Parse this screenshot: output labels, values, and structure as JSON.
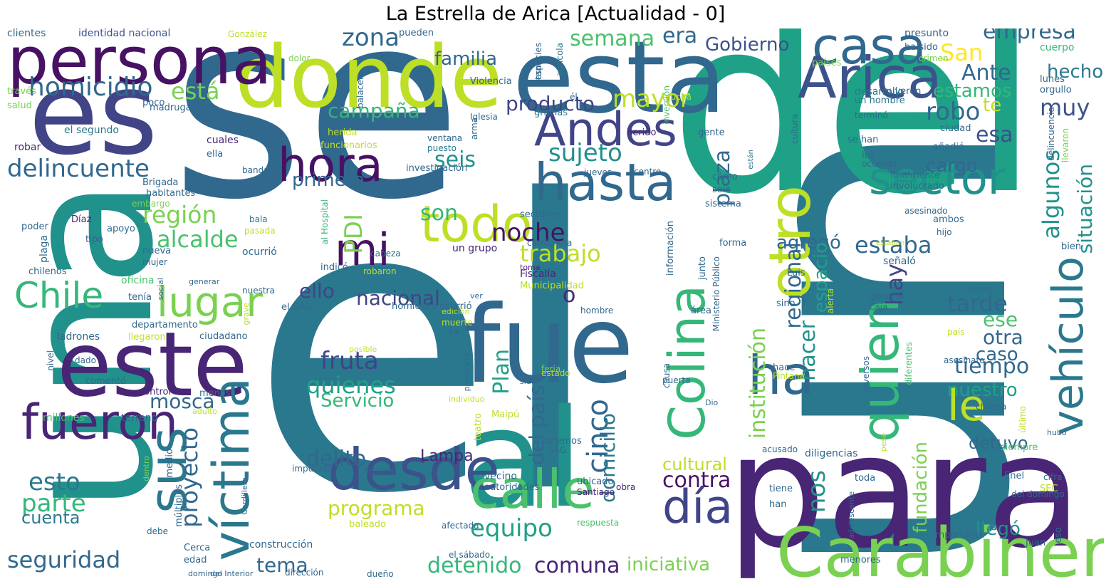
{
  "title": "La Estrella de Arica [Actualidad - 0]",
  "palette": {
    "dark_purple": "#482575",
    "deep_purple": "#471164",
    "indigo": "#414487",
    "blue": "#3b528b",
    "steel": "#31688e",
    "teal_blue": "#2a788e",
    "teal": "#21918c",
    "sea_green": "#1fa187",
    "green": "#35b779",
    "light_green": "#4ac16d",
    "lime": "#7ad151",
    "yellow_green": "#bddf26",
    "yellow": "#fde725",
    "chartreuse": "#addc30"
  },
  "words": [
    {
      "text": "el",
      "color": "#2a788e"
    },
    {
      "text": "se",
      "color": "#31688e"
    },
    {
      "text": "un",
      "color": "#2a788e"
    },
    {
      "text": "del",
      "color": "#1fa187"
    },
    {
      "text": "una",
      "color": "#21918c"
    },
    {
      "text": "es",
      "color": "#414487"
    },
    {
      "text": "para",
      "color": "#482575"
    },
    {
      "text": "donde",
      "color": "#bddf26"
    },
    {
      "text": "esta",
      "color": "#31688e"
    },
    {
      "text": "persona",
      "color": "#471164"
    },
    {
      "text": "al",
      "color": "#21918c"
    },
    {
      "text": "fue",
      "color": "#31688e"
    },
    {
      "text": "este",
      "color": "#482575"
    },
    {
      "text": "Carabinero",
      "color": "#7ad151"
    },
    {
      "text": "casa",
      "color": "#31688e"
    },
    {
      "text": "Arica",
      "color": "#3b528b"
    },
    {
      "text": "Andes",
      "color": "#414487"
    },
    {
      "text": "hasta",
      "color": "#31688e"
    },
    {
      "text": "hora",
      "color": "#471164"
    },
    {
      "text": "todo",
      "color": "#bddf26"
    },
    {
      "text": "mi",
      "color": "#471164"
    },
    {
      "text": "desde",
      "color": "#3b528b"
    },
    {
      "text": "calle",
      "color": "#4ac16d"
    },
    {
      "text": "día",
      "color": "#414487"
    },
    {
      "text": "víctima",
      "color": "#2a788e"
    },
    {
      "text": "fueron",
      "color": "#482575"
    },
    {
      "text": "sus",
      "color": "#2a788e"
    },
    {
      "text": "Chile",
      "color": "#35b779"
    },
    {
      "text": "lugar",
      "color": "#7ad151"
    },
    {
      "text": "Colina",
      "color": "#35b779"
    },
    {
      "text": "otro",
      "color": "#bddf26"
    },
    {
      "text": "ha",
      "color": "#31688e"
    },
    {
      "text": "quien",
      "color": "#35b779"
    },
    {
      "text": "le",
      "color": "#bddf26"
    },
    {
      "text": "sector",
      "color": "#21918c"
    },
    {
      "text": "vehículo",
      "color": "#2a788e"
    },
    {
      "text": "homicidio",
      "color": "#31688e"
    },
    {
      "text": "delincuente",
      "color": "#31688e"
    },
    {
      "text": "región",
      "color": "#7ad151"
    },
    {
      "text": "alcalde",
      "color": "#4ac16d"
    },
    {
      "text": "está",
      "color": "#7ad151"
    },
    {
      "text": "zona",
      "color": "#31688e"
    },
    {
      "text": "familia",
      "color": "#31688e"
    },
    {
      "text": "semana",
      "color": "#4ac16d"
    },
    {
      "text": "era",
      "color": "#31688e"
    },
    {
      "text": "Gobierno",
      "color": "#3b528b"
    },
    {
      "text": "San",
      "color": "#fde725"
    },
    {
      "text": "Ante",
      "color": "#31688e"
    },
    {
      "text": "empresa",
      "color": "#31688e"
    },
    {
      "text": "hecho",
      "color": "#2a788e"
    },
    {
      "text": "estamos",
      "color": "#35b779"
    },
    {
      "text": "muy",
      "color": "#3b528b"
    },
    {
      "text": "te",
      "color": "#bddf26"
    },
    {
      "text": "robo",
      "color": "#31688e"
    },
    {
      "text": "esa",
      "color": "#3b528b"
    },
    {
      "text": "mayor",
      "color": "#bddf26"
    },
    {
      "text": "producto",
      "color": "#414487"
    },
    {
      "text": "campaña",
      "color": "#35b779"
    },
    {
      "text": "sujeto",
      "color": "#21918c"
    },
    {
      "text": "seis",
      "color": "#21918c"
    },
    {
      "text": "primera",
      "color": "#31688e"
    },
    {
      "text": "son",
      "color": "#35b779"
    },
    {
      "text": "PDI",
      "color": "#7ad151"
    },
    {
      "text": "trabajo",
      "color": "#bddf26"
    },
    {
      "text": "estaba",
      "color": "#31688e"
    },
    {
      "text": "agregó",
      "color": "#31688e"
    },
    {
      "text": "regional",
      "color": "#31688e"
    },
    {
      "text": "plaza",
      "color": "#31688e"
    },
    {
      "text": "institución",
      "color": "#7ad151"
    },
    {
      "text": "hacer",
      "color": "#21918c"
    },
    {
      "text": "espacio",
      "color": "#1fa187"
    },
    {
      "text": "hay",
      "color": "#414487"
    },
    {
      "text": "algunos",
      "color": "#21918c"
    },
    {
      "text": "situación",
      "color": "#21918c"
    },
    {
      "text": "cargo",
      "color": "#31688e"
    },
    {
      "text": "nacional",
      "color": "#414487"
    },
    {
      "text": "ello",
      "color": "#414487"
    },
    {
      "text": "noche",
      "color": "#471164"
    },
    {
      "text": "o",
      "color": "#482575"
    },
    {
      "text": "fruta",
      "color": "#414487"
    },
    {
      "text": "quienes",
      "color": "#1fa187"
    },
    {
      "text": "Servicio",
      "color": "#35b779"
    },
    {
      "text": "mosca",
      "color": "#31688e"
    },
    {
      "text": "Plan",
      "color": "#1fa187"
    },
    {
      "text": "país",
      "color": "#31688e"
    },
    {
      "text": "cinco",
      "color": "#31688e"
    },
    {
      "text": "domicilio",
      "color": "#2a788e"
    },
    {
      "text": "tarde",
      "color": "#31688e"
    },
    {
      "text": "ese",
      "color": "#4ac16d"
    },
    {
      "text": "otra",
      "color": "#31688e"
    },
    {
      "text": "caso",
      "color": "#31688e"
    },
    {
      "text": "tiempo",
      "color": "#31688e"
    },
    {
      "text": "nuestro",
      "color": "#1fa187"
    },
    {
      "text": "delito",
      "color": "#31688e"
    },
    {
      "text": "Lampa",
      "color": "#482575"
    },
    {
      "text": "esto",
      "color": "#2a788e"
    },
    {
      "text": "parte",
      "color": "#35b779"
    },
    {
      "text": "cuenta",
      "color": "#2a788e"
    },
    {
      "text": "seguridad",
      "color": "#31688e"
    },
    {
      "text": "proyecto",
      "color": "#31688e"
    },
    {
      "text": "del",
      "color": "#31688e"
    },
    {
      "text": "programa",
      "color": "#bddf26"
    },
    {
      "text": "equipo",
      "color": "#1fa187"
    },
    {
      "text": "detenido",
      "color": "#35b779"
    },
    {
      "text": "comuna",
      "color": "#482575"
    },
    {
      "text": "iniciativa",
      "color": "#7ad151"
    },
    {
      "text": "tema",
      "color": "#31688e"
    },
    {
      "text": "contra",
      "color": "#471164"
    },
    {
      "text": "cultural",
      "color": "#bddf26"
    },
    {
      "text": "nos",
      "color": "#21918c"
    },
    {
      "text": "fundación",
      "color": "#7ad151"
    },
    {
      "text": "detuvo",
      "color": "#31688e"
    },
    {
      "text": "llegó",
      "color": "#21918c"
    },
    {
      "text": "identidad nacional",
      "color": "#3b528b"
    },
    {
      "text": "clientes",
      "color": "#31688e"
    },
    {
      "text": "González",
      "color": "#bddf26"
    },
    {
      "text": "dolor",
      "color": "#7ad151"
    },
    {
      "text": "pueden",
      "color": "#31688e"
    },
    {
      "text": "presunto",
      "color": "#31688e"
    },
    {
      "text": "ha sido",
      "color": "#31688e"
    },
    {
      "text": "crimen",
      "color": "#7ad151"
    },
    {
      "text": "cuerpo",
      "color": "#35b779"
    },
    {
      "text": "través",
      "color": "#7ad151"
    },
    {
      "text": "salud",
      "color": "#7ad151"
    },
    {
      "text": "poco",
      "color": "#31688e"
    },
    {
      "text": "madrugada",
      "color": "#31688e"
    },
    {
      "text": "Violencia",
      "color": "#31688e"
    },
    {
      "text": "especies",
      "color": "#31688e"
    },
    {
      "text": "agrícola",
      "color": "#2a788e"
    },
    {
      "text": "países",
      "color": "#7ad151"
    },
    {
      "text": "desarrollo",
      "color": "#2a788e"
    },
    {
      "text": "huyeron",
      "color": "#31688e"
    },
    {
      "text": "lunes",
      "color": "#31688e"
    },
    {
      "text": "orgullo",
      "color": "#31688e"
    },
    {
      "text": "el segundo",
      "color": "#2a788e"
    },
    {
      "text": "robar",
      "color": "#482575"
    },
    {
      "text": "gracias",
      "color": "#2a788e"
    },
    {
      "text": "Iglesia",
      "color": "#31688e"
    },
    {
      "text": "arma",
      "color": "#31688e"
    },
    {
      "text": "un hombre",
      "color": "#2a788e"
    },
    {
      "text": "terminó",
      "color": "#31688e"
    },
    {
      "text": "ciudad",
      "color": "#31688e"
    },
    {
      "text": "delincuencia",
      "color": "#31688e"
    },
    {
      "text": "llevaron",
      "color": "#7ad151"
    },
    {
      "text": "herido",
      "color": "#482575"
    },
    {
      "text": "herida",
      "color": "#bddf26"
    },
    {
      "text": "mucha",
      "color": "#bddf26"
    },
    {
      "text": "inversión",
      "color": "#4ac16d"
    },
    {
      "text": "gente",
      "color": "#31688e"
    },
    {
      "text": "se han",
      "color": "#31688e"
    },
    {
      "text": "luz",
      "color": "#31688e"
    },
    {
      "text": "añadió",
      "color": "#31688e"
    },
    {
      "text": "ventana",
      "color": "#31688e"
    },
    {
      "text": "puesto",
      "color": "#2a788e"
    },
    {
      "text": "cuales",
      "color": "#482575"
    },
    {
      "text": "funcionarios",
      "color": "#bddf26"
    },
    {
      "text": "ella",
      "color": "#31688e"
    },
    {
      "text": "banda",
      "color": "#31688e"
    },
    {
      "text": "investigación",
      "color": "#31688e"
    },
    {
      "text": "jueves",
      "color": "#31688e"
    },
    {
      "text": "centro",
      "color": "#31688e"
    },
    {
      "text": "están",
      "color": "#2a788e"
    },
    {
      "text": "cultura",
      "color": "#31688e"
    },
    {
      "text": "ocurrido",
      "color": "#31688e"
    },
    {
      "text": "cómo",
      "color": "#31688e"
    },
    {
      "text": "solo",
      "color": "#31688e"
    },
    {
      "text": "sistema",
      "color": "#31688e"
    },
    {
      "text": "finalmente",
      "color": "#31688e"
    },
    {
      "text": "involucrado",
      "color": "#31688e"
    },
    {
      "text": "Brigada",
      "color": "#31688e"
    },
    {
      "text": "habitantes",
      "color": "#31688e"
    },
    {
      "text": "embargo",
      "color": "#7ad151"
    },
    {
      "text": "Díaz",
      "color": "#482575"
    },
    {
      "text": "apoyo",
      "color": "#31688e"
    },
    {
      "text": "tipo",
      "color": "#31688e"
    },
    {
      "text": "bala",
      "color": "#2a788e"
    },
    {
      "text": "pasada",
      "color": "#bddf26"
    },
    {
      "text": "poder",
      "color": "#31688e"
    },
    {
      "text": "plaga",
      "color": "#31688e"
    },
    {
      "text": "al Hospital",
      "color": "#35b779"
    },
    {
      "text": "sectores",
      "color": "#31688e"
    },
    {
      "text": "asesinado",
      "color": "#31688e"
    },
    {
      "text": "ambos",
      "color": "#31688e"
    },
    {
      "text": "hijo",
      "color": "#31688e"
    },
    {
      "text": "bien",
      "color": "#31688e"
    },
    {
      "text": "chilenos",
      "color": "#31688e"
    },
    {
      "text": "nueva",
      "color": "#31688e"
    },
    {
      "text": "ocurrió",
      "color": "#31688e"
    },
    {
      "text": "camioneta",
      "color": "#31688e"
    },
    {
      "text": "un grupo",
      "color": "#482575"
    },
    {
      "text": "forma",
      "color": "#31688e"
    },
    {
      "text": "señaló",
      "color": "#31688e"
    },
    {
      "text": "estaban",
      "color": "#bddf26"
    },
    {
      "text": "información",
      "color": "#31688e"
    },
    {
      "text": "junto",
      "color": "#31688e"
    },
    {
      "text": "mujer",
      "color": "#31688e"
    },
    {
      "text": "oficina",
      "color": "#4ac16d"
    },
    {
      "text": "indicó",
      "color": "#31688e"
    },
    {
      "text": "cabeza",
      "color": "#31688e"
    },
    {
      "text": "robaron",
      "color": "#bddf26"
    },
    {
      "text": "Municipalidad",
      "color": "#bddf26"
    },
    {
      "text": "Fiscalía",
      "color": "#482575"
    },
    {
      "text": "Luis",
      "color": "#31688e"
    },
    {
      "text": "sino",
      "color": "#31688e"
    },
    {
      "text": "área",
      "color": "#31688e"
    },
    {
      "text": "Ministerio Público",
      "color": "#31688e"
    },
    {
      "text": "tenía",
      "color": "#31688e"
    },
    {
      "text": "social",
      "color": "#31688e"
    },
    {
      "text": "generar",
      "color": "#31688e"
    },
    {
      "text": "nuestra",
      "color": "#31688e"
    },
    {
      "text": "ver",
      "color": "#31688e"
    },
    {
      "text": "toma",
      "color": "#482575"
    },
    {
      "text": "el SAG",
      "color": "#31688e"
    },
    {
      "text": "edición",
      "color": "#bddf26"
    },
    {
      "text": "homicidio ocurrió",
      "color": "#31688e"
    },
    {
      "text": "hombre",
      "color": "#31688e"
    },
    {
      "text": "general",
      "color": "#31688e"
    },
    {
      "text": "Caja",
      "color": "#31688e"
    },
    {
      "text": "alerta",
      "color": "#bddf26"
    },
    {
      "text": "joven",
      "color": "#31688e"
    },
    {
      "text": "nivel",
      "color": "#31688e"
    },
    {
      "text": "ladrones",
      "color": "#31688e"
    },
    {
      "text": "departamento",
      "color": "#31688e"
    },
    {
      "text": "grave",
      "color": "#bddf26"
    },
    {
      "text": "llegaron",
      "color": "#bddf26"
    },
    {
      "text": "muerte",
      "color": "#bddf26"
    },
    {
      "text": "va",
      "color": "#31688e"
    },
    {
      "text": "ciudadano",
      "color": "#31688e"
    },
    {
      "text": "causa",
      "color": "#31688e"
    },
    {
      "text": "país",
      "color": "#bddf26"
    },
    {
      "text": "posible",
      "color": "#bddf26"
    },
    {
      "text": "dado",
      "color": "#31688e"
    },
    {
      "text": "comentó",
      "color": "#31688e"
    },
    {
      "text": "presencia",
      "color": "#31688e"
    },
    {
      "text": "feria",
      "color": "#7ad151"
    },
    {
      "text": "sido",
      "color": "#31688e"
    },
    {
      "text": "estado",
      "color": "#bddf26"
    },
    {
      "text": "hace",
      "color": "#31688e"
    },
    {
      "text": "Pintana",
      "color": "#bddf26"
    },
    {
      "text": "puerta",
      "color": "#31688e"
    },
    {
      "text": "diversos",
      "color": "#31688e"
    },
    {
      "text": "diferentes",
      "color": "#4ac16d"
    },
    {
      "text": "asesinato",
      "color": "#31688e"
    },
    {
      "text": "control",
      "color": "#482575"
    },
    {
      "text": "menos",
      "color": "#31688e"
    },
    {
      "text": "individuo",
      "color": "#bddf26"
    },
    {
      "text": "millones",
      "color": "#4ac16d"
    },
    {
      "text": "terreno",
      "color": "#31688e"
    },
    {
      "text": "adulto",
      "color": "#bddf26"
    },
    {
      "text": "teatro",
      "color": "#bddf26"
    },
    {
      "text": "Maipú",
      "color": "#bddf26"
    },
    {
      "text": "tenemos",
      "color": "#31688e"
    },
    {
      "text": "SAG",
      "color": "#31688e"
    },
    {
      "text": "Dio",
      "color": "#31688e"
    },
    {
      "text": "chilena",
      "color": "#31688e"
    },
    {
      "text": "último",
      "color": "#bddf26"
    },
    {
      "text": "hubo",
      "color": "#31688e"
    },
    {
      "text": "pese",
      "color": "#bddf26"
    },
    {
      "text": "siempre",
      "color": "#4ac16d"
    },
    {
      "text": "acusado",
      "color": "#31688e"
    },
    {
      "text": "diligencias",
      "color": "#31688e"
    },
    {
      "text": "imputado",
      "color": "#31688e"
    },
    {
      "text": "historia",
      "color": "#31688e"
    },
    {
      "text": "dentro",
      "color": "#7ad151"
    },
    {
      "text": "medio",
      "color": "#31688e"
    },
    {
      "text": "vecino",
      "color": "#31688e"
    },
    {
      "text": "autoridades",
      "color": "#31688e"
    },
    {
      "text": "ubicado",
      "color": "#31688e"
    },
    {
      "text": "Santiago",
      "color": "#482575"
    },
    {
      "text": "obra",
      "color": "#482575"
    },
    {
      "text": "tiene",
      "color": "#31688e"
    },
    {
      "text": "toda",
      "color": "#31688e"
    },
    {
      "text": "han",
      "color": "#31688e"
    },
    {
      "text": "Enel",
      "color": "#31688e"
    },
    {
      "text": "SEC",
      "color": "#bddf26"
    },
    {
      "text": "cifra",
      "color": "#31688e"
    },
    {
      "text": "del domingo",
      "color": "#31688e"
    },
    {
      "text": "múltiples",
      "color": "#31688e"
    },
    {
      "text": "Cordillera",
      "color": "#31688e"
    },
    {
      "text": "baleado",
      "color": "#bddf26"
    },
    {
      "text": "afectada",
      "color": "#31688e"
    },
    {
      "text": "respuesta",
      "color": "#4ac16d"
    },
    {
      "text": "adolescente",
      "color": "#31688e"
    },
    {
      "text": "importante",
      "color": "#31688e"
    },
    {
      "text": "eso",
      "color": "#31688e"
    },
    {
      "text": "debe",
      "color": "#31688e"
    },
    {
      "text": "Cerca",
      "color": "#31688e"
    },
    {
      "text": "construcción",
      "color": "#31688e"
    },
    {
      "text": "menores",
      "color": "#31688e"
    },
    {
      "text": "el sábado",
      "color": "#31688e"
    },
    {
      "text": "Juan",
      "color": "#31688e"
    },
    {
      "text": "edad",
      "color": "#31688e"
    },
    {
      "text": "domingo",
      "color": "#31688e"
    },
    {
      "text": "del Interior",
      "color": "#31688e"
    },
    {
      "text": "dirección",
      "color": "#31688e"
    },
    {
      "text": "dueño",
      "color": "#31688e"
    },
    {
      "text": "tanto",
      "color": "#31688e"
    },
    {
      "text": "si",
      "color": "#31688e"
    },
    {
      "text": "él",
      "color": "#31688e"
    },
    {
      "text": "balacera",
      "color": "#31688e"
    }
  ]
}
